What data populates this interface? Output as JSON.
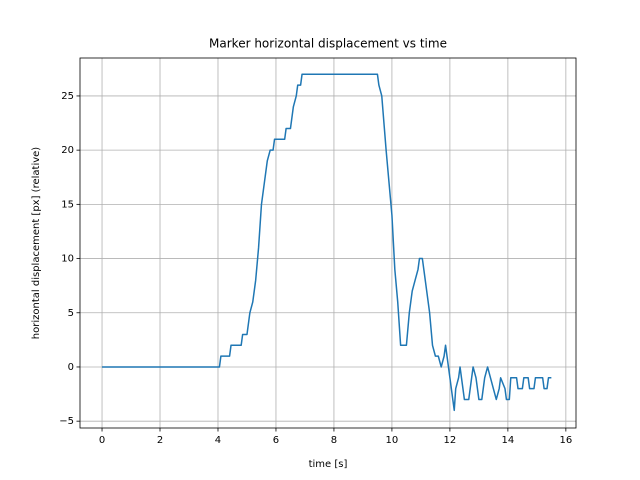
{
  "chart_data": {
    "type": "line",
    "title": "Marker horizontal displacement vs time",
    "x_label": "time [s]",
    "y_label": "horizontal displacement [px] (relative)",
    "grid": true,
    "xlim": [
      -0.76,
      16.35
    ],
    "ylim": [
      -5.63,
      28.5
    ],
    "xticks": [
      0,
      2,
      4,
      6,
      8,
      10,
      12,
      14,
      16
    ],
    "yticks": [
      {
        "value": -5,
        "label": "−5"
      },
      0,
      5,
      10,
      15,
      20,
      25
    ],
    "series": [
      {
        "color": "#1f77b4",
        "x": [
          0,
          4.05,
          4.1,
          4.4,
          4.45,
          4.8,
          4.85,
          5.0,
          5.1,
          5.2,
          5.3,
          5.4,
          5.5,
          5.6,
          5.7,
          5.8,
          5.9,
          5.95,
          6.3,
          6.35,
          6.5,
          6.55,
          6.6,
          6.7,
          6.75,
          6.85,
          6.9,
          9.5,
          9.55,
          9.65,
          9.8,
          9.9,
          10.0,
          10.1,
          10.2,
          10.3,
          10.5,
          10.6,
          10.7,
          10.8,
          10.9,
          10.95,
          11.05,
          11.1,
          11.2,
          11.3,
          11.4,
          11.5,
          11.6,
          11.7,
          11.8,
          11.85,
          11.9,
          12.0,
          12.1,
          12.15,
          12.2,
          12.3,
          12.35,
          12.45,
          12.5,
          12.65,
          12.75,
          12.8,
          12.9,
          13.0,
          13.1,
          13.2,
          13.3,
          13.4,
          13.5,
          13.6,
          13.7,
          13.75,
          13.9,
          13.95,
          14.05,
          14.1,
          14.3,
          14.35,
          14.5,
          14.55,
          14.7,
          14.75,
          14.9,
          14.95,
          15.2,
          15.25,
          15.35,
          15.4,
          15.5
        ],
        "values": [
          0,
          0,
          1,
          1,
          2,
          2,
          3,
          3,
          5,
          6,
          8,
          11,
          15,
          17,
          19,
          20,
          20,
          21,
          21,
          22,
          22,
          23,
          24,
          25,
          26,
          26,
          27,
          27,
          26,
          25,
          20,
          17,
          14,
          9,
          6,
          2,
          2,
          5,
          7,
          8,
          9,
          10,
          10,
          9,
          7,
          5,
          2,
          1,
          1,
          0,
          1,
          2,
          1,
          -1,
          -3,
          -4,
          -2,
          -1,
          0,
          -2,
          -3,
          -3,
          -1,
          0,
          -1,
          -3,
          -3,
          -1,
          0,
          -1,
          -2,
          -3,
          -2,
          -1,
          -2,
          -3,
          -3,
          -1,
          -1,
          -2,
          -2,
          -1,
          -1,
          -2,
          -2,
          -1,
          -1,
          -2,
          -2,
          -1,
          -1
        ]
      }
    ]
  }
}
